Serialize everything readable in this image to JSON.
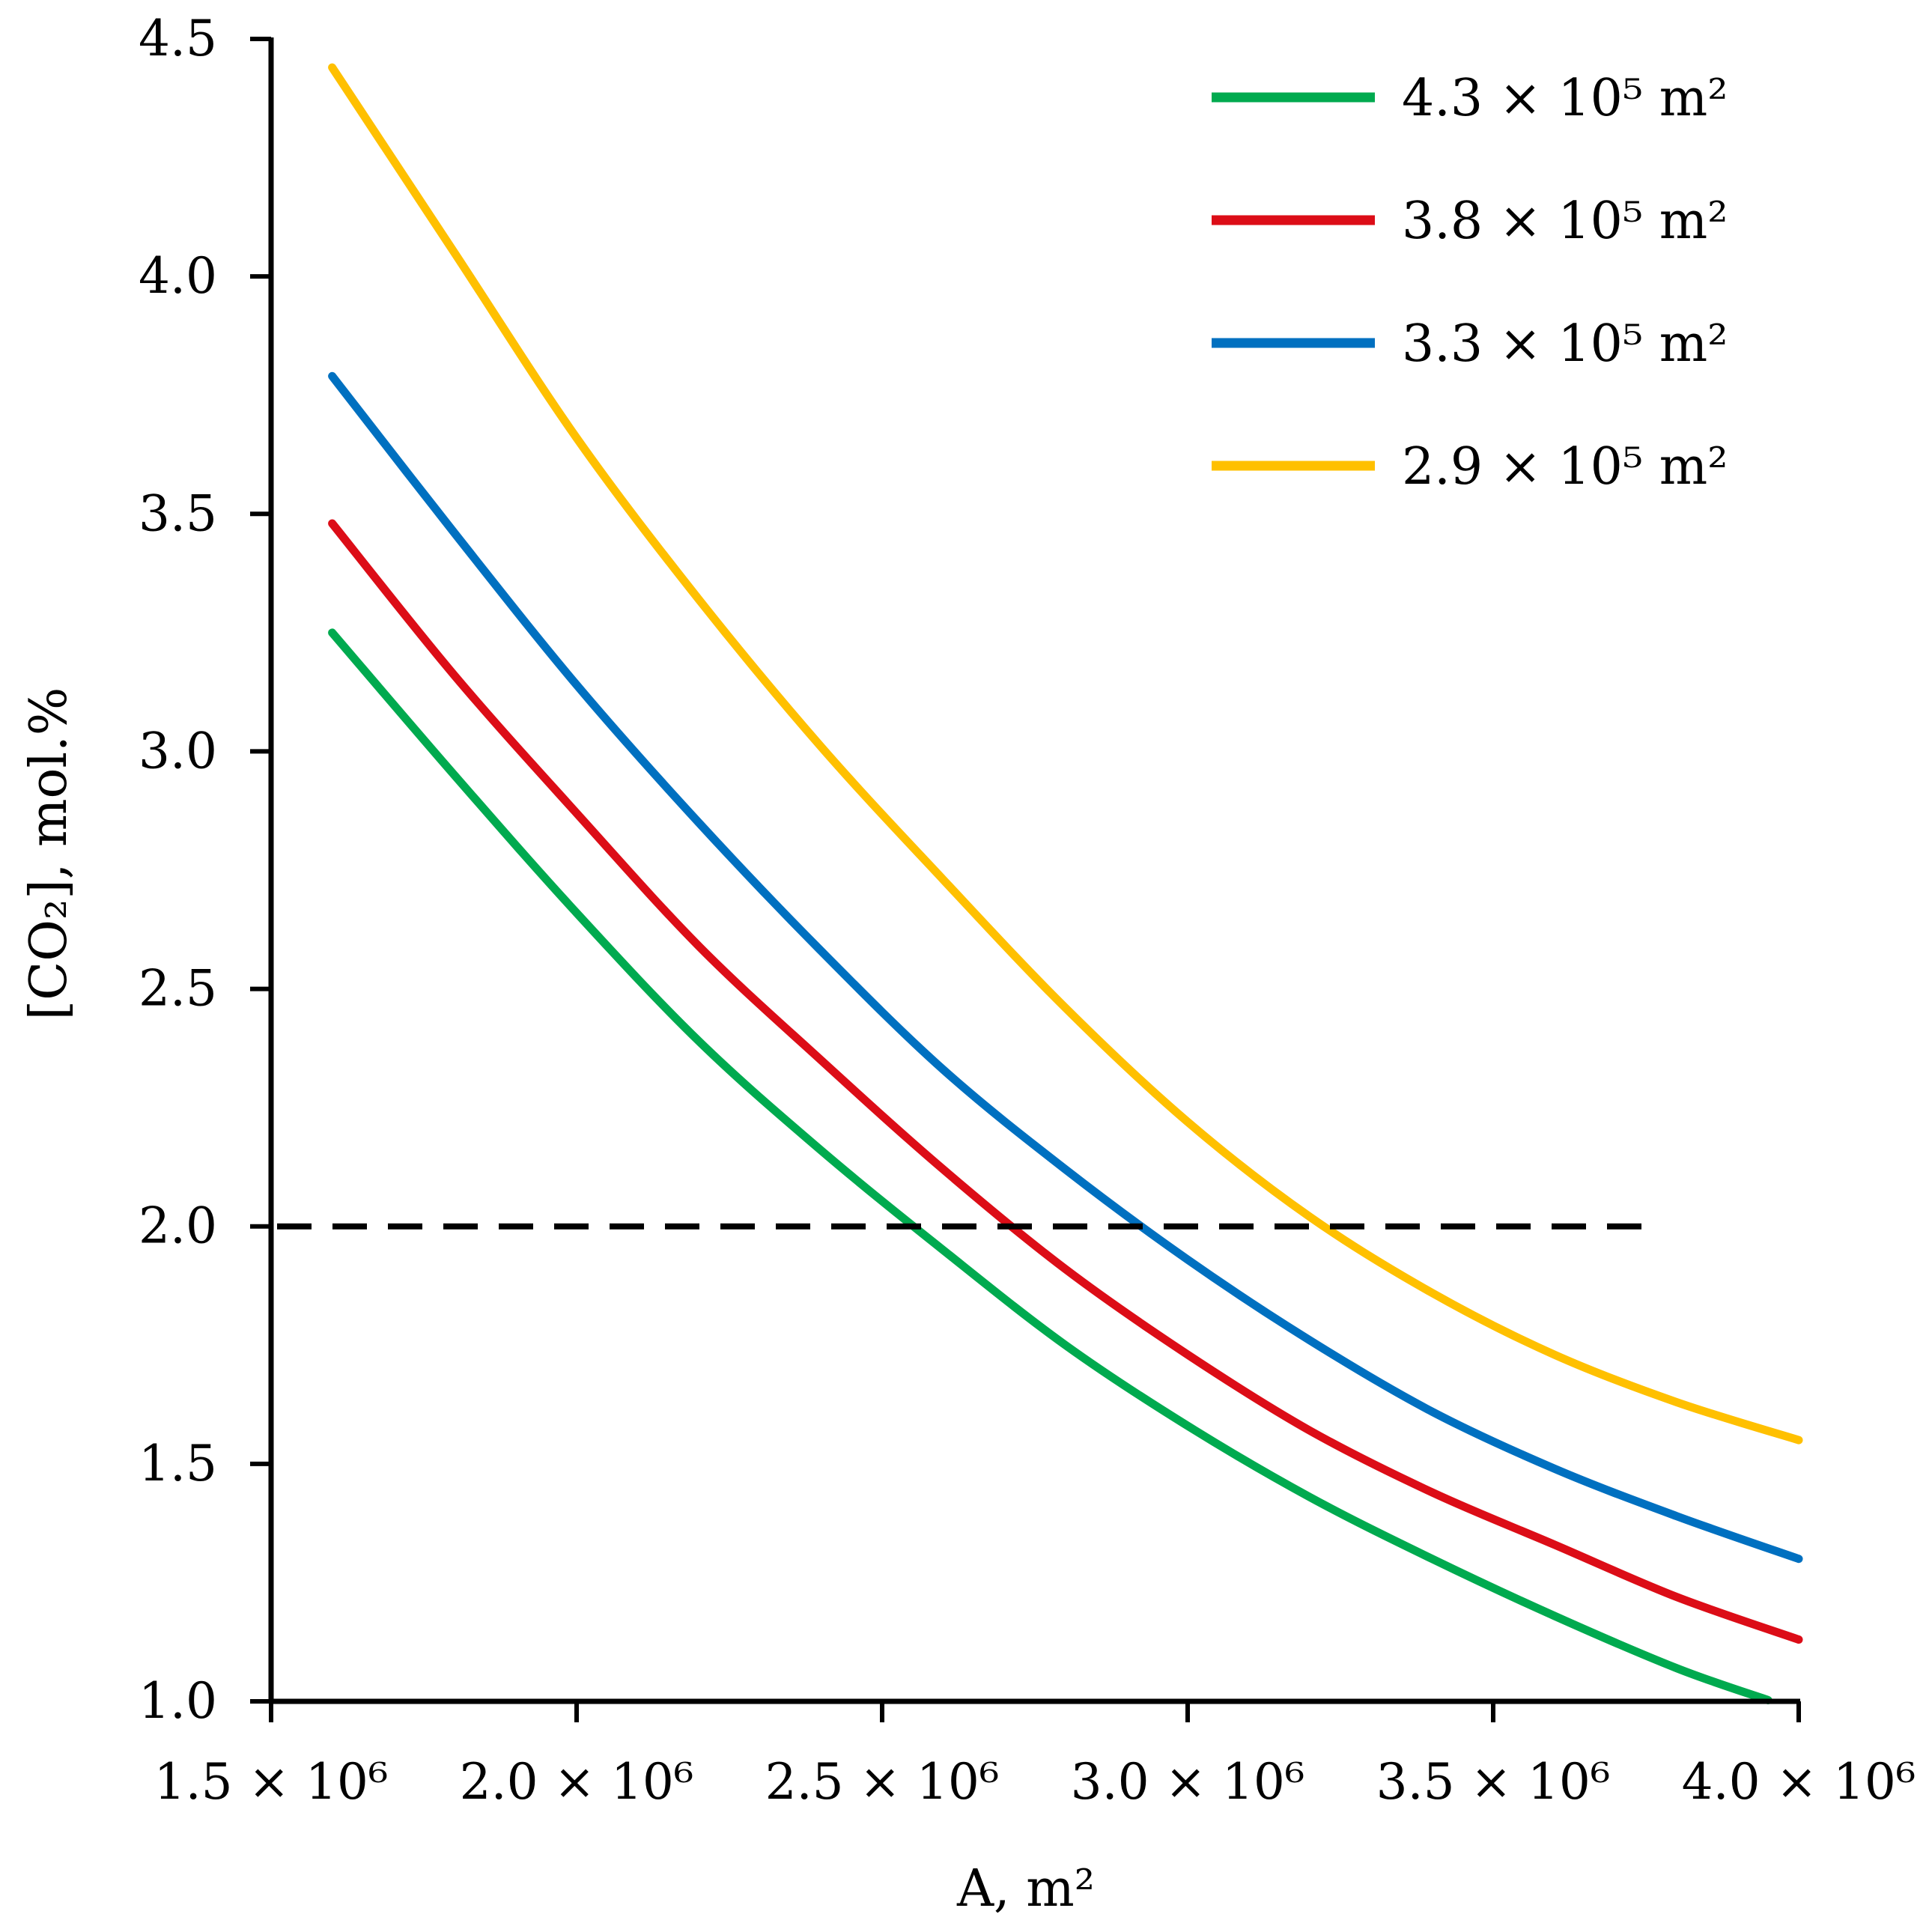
{
  "chart_data": {
    "type": "line",
    "title": "",
    "xlabel": "A, m²",
    "ylabel": "[CO₂], mol.%",
    "xlim": [
      1500000,
      4000000
    ],
    "ylim": [
      1.0,
      4.5
    ],
    "x_ticks": [
      {
        "value": 1500000,
        "label": "1.5 × 10⁶"
      },
      {
        "value": 2000000,
        "label": "2.0 × 10⁶"
      },
      {
        "value": 2500000,
        "label": "2.5 × 10⁶"
      },
      {
        "value": 3000000,
        "label": "3.0 × 10⁶"
      },
      {
        "value": 3500000,
        "label": "3.5 × 10⁶"
      },
      {
        "value": 4000000,
        "label": "4.0 × 10⁶"
      }
    ],
    "y_ticks": [
      {
        "value": 1.0,
        "label": "1.0"
      },
      {
        "value": 1.5,
        "label": "1.5"
      },
      {
        "value": 2.0,
        "label": "2.0"
      },
      {
        "value": 2.5,
        "label": "2.5"
      },
      {
        "value": 3.0,
        "label": "3.0"
      },
      {
        "value": 3.5,
        "label": "3.5"
      },
      {
        "value": 4.0,
        "label": "4.0"
      },
      {
        "value": 4.5,
        "label": "4.5"
      }
    ],
    "grid": false,
    "legend_position": "top-right",
    "x": [
      1600000,
      1800000,
      2000000,
      2200000,
      2400000,
      2600000,
      2800000,
      3000000,
      3200000,
      3400000,
      3600000,
      3800000,
      4000000
    ],
    "series": [
      {
        "name": "4.3 × 10⁵ m²",
        "color": "#00aa4f",
        "x_end": 3950000,
        "values": [
          3.25,
          2.95,
          2.66,
          2.39,
          2.16,
          1.95,
          1.75,
          1.58,
          1.43,
          1.3,
          1.18,
          1.07,
          0.98
        ]
      },
      {
        "name": "3.8 × 10⁵ m²",
        "color": "#dc0d17",
        "values": [
          3.48,
          3.16,
          2.87,
          2.59,
          2.35,
          2.12,
          1.91,
          1.73,
          1.57,
          1.44,
          1.33,
          1.22,
          1.13
        ]
      },
      {
        "name": "3.3 × 10⁵ m²",
        "color": "#0070c0",
        "values": [
          3.79,
          3.46,
          3.14,
          2.85,
          2.58,
          2.33,
          2.12,
          1.93,
          1.76,
          1.61,
          1.49,
          1.39,
          1.3
        ]
      },
      {
        "name": "2.9 × 10⁵ m²",
        "color": "#ffc000",
        "values": [
          4.44,
          4.05,
          3.66,
          3.32,
          3.01,
          2.73,
          2.46,
          2.22,
          2.02,
          1.86,
          1.73,
          1.63,
          1.55
        ]
      }
    ],
    "reference_line": {
      "y": 2.0,
      "x_start": 1500000,
      "x_end": 3750000,
      "style": "dashed",
      "color": "#000000"
    }
  }
}
